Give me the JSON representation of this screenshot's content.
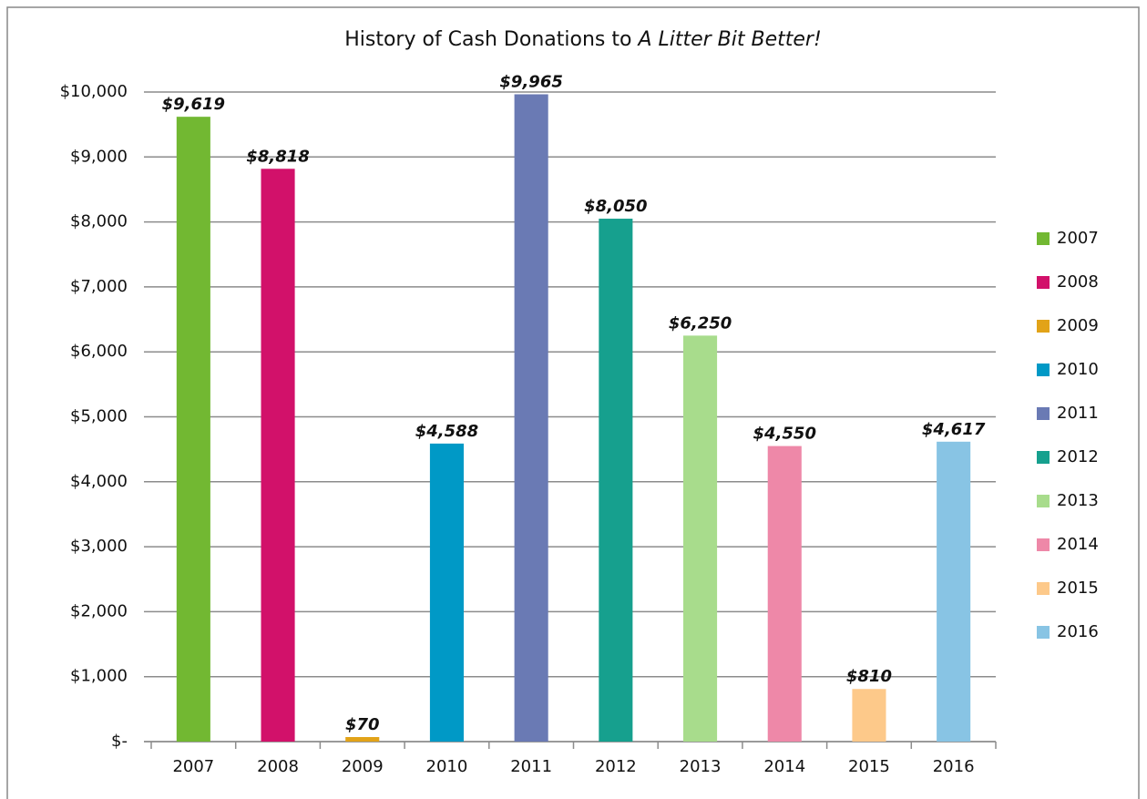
{
  "chart_data": {
    "type": "bar",
    "title": [
      "History of Cash Donations to",
      "A Litter Bit Better!"
    ],
    "categories": [
      "2007",
      "2008",
      "2009",
      "2010",
      "2011",
      "2012",
      "2013",
      "2014",
      "2015",
      "2016"
    ],
    "values": [
      9619,
      8818,
      70,
      4588,
      9965,
      8050,
      6250,
      4550,
      810,
      4617
    ],
    "value_labels": [
      "$9,619",
      "$8,818",
      "$70",
      "$4,588",
      "$9,965",
      "$8,050",
      "$6,250",
      "$4,550",
      "$810",
      "$4,617"
    ],
    "colors": [
      "#72b832",
      "#d2116a",
      "#e2a318",
      "#0099c6",
      "#6a7ab4",
      "#16a08e",
      "#a8dc8c",
      "#ee88a8",
      "#fdc98a",
      "#88c4e4"
    ],
    "ylim": [
      0,
      10000
    ],
    "yticks": [
      {
        "value": 0,
        "label": "$-"
      },
      {
        "value": 1000,
        "label": "$1,000"
      },
      {
        "value": 2000,
        "label": "$2,000"
      },
      {
        "value": 3000,
        "label": "$3,000"
      },
      {
        "value": 4000,
        "label": "$4,000"
      },
      {
        "value": 5000,
        "label": "$5,000"
      },
      {
        "value": 6000,
        "label": "$6,000"
      },
      {
        "value": 7000,
        "label": "$7,000"
      },
      {
        "value": 8000,
        "label": "$8,000"
      },
      {
        "value": 9000,
        "label": "$9,000"
      },
      {
        "value": 10000,
        "label": "$10,000"
      }
    ],
    "grid": true,
    "legend": "right"
  }
}
